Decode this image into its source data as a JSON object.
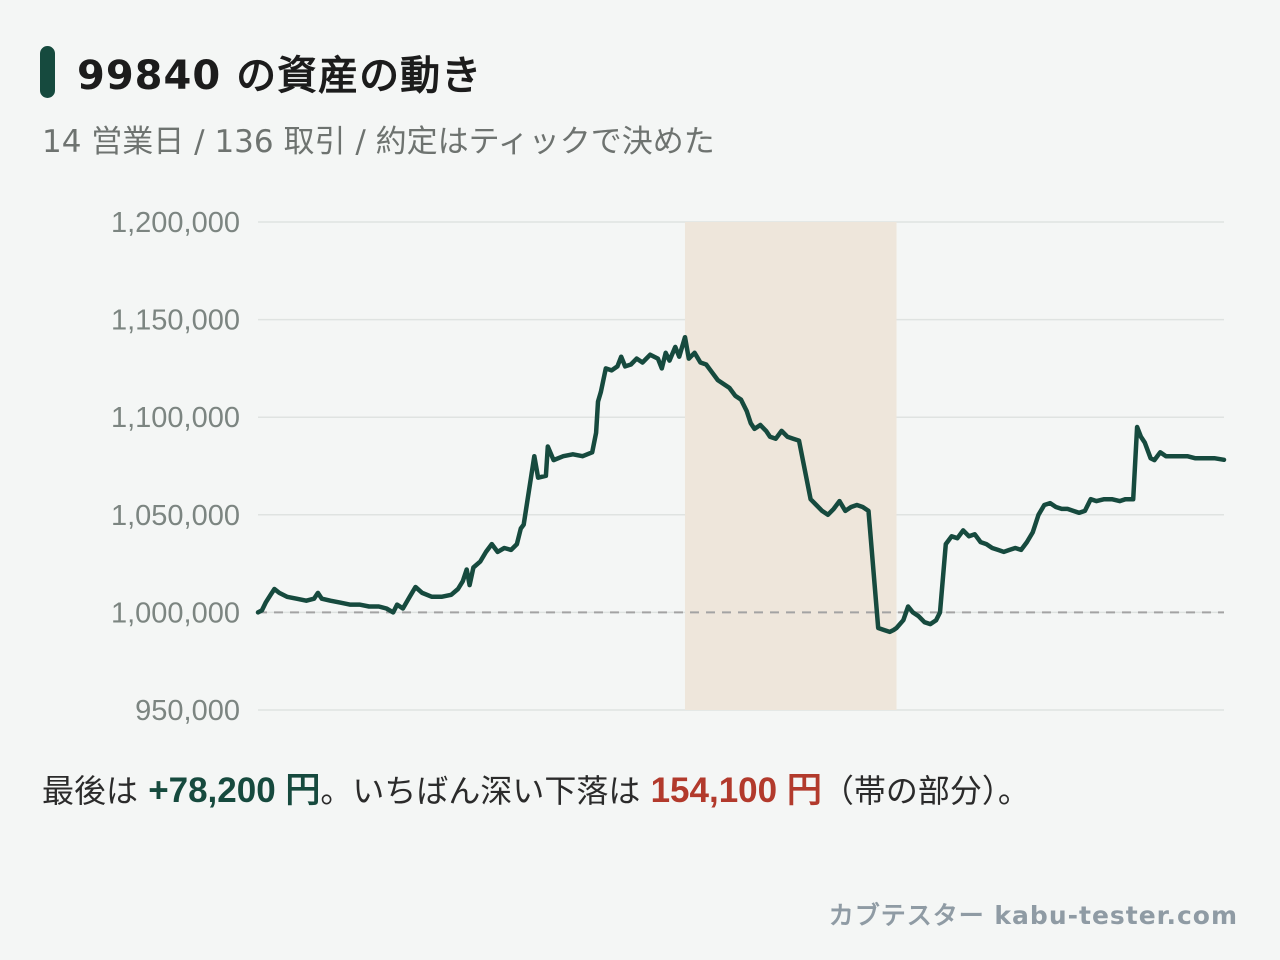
{
  "header": {
    "title": "99840 の資産の動き",
    "subtitle": "14 営業日 / 136 取引 / 約定はティックで決めた"
  },
  "summary": {
    "prefix": "最後は ",
    "final_change": "+78,200 円",
    "middle": "。いちばん深い下落は ",
    "max_drawdown": "154,100 円",
    "suffix": "（帯の部分）。"
  },
  "footer": {
    "brand": "カブテスター kabu-tester.com"
  },
  "colors": {
    "line": "#164a3e",
    "drawdown_band": "#eee6db",
    "baseline": "#a3a3a3",
    "grid": "#dfe3e1",
    "gain": "#164a3e",
    "loss": "#b23a2c"
  },
  "chart_data": {
    "type": "line",
    "title": "99840 の資産の動き",
    "xlabel": "",
    "ylabel": "",
    "ylim": [
      950000,
      1200000
    ],
    "yticks": [
      950000,
      1000000,
      1050000,
      1100000,
      1150000,
      1200000
    ],
    "ytick_labels": [
      "950,000",
      "1,000,000",
      "1,050,000",
      "1,100,000",
      "1,150,000",
      "1,200,000"
    ],
    "grid": true,
    "legend": "none",
    "baseline": 1000000,
    "drawdown_band": {
      "x_start": 0.442,
      "x_end": 0.661
    },
    "x_range": [
      0,
      1
    ],
    "series": [
      {
        "values": [
          [
            0.0,
            1000000
          ],
          [
            0.004,
            1001000
          ],
          [
            0.008,
            1005000
          ],
          [
            0.013,
            1009000
          ],
          [
            0.017,
            1012000
          ],
          [
            0.022,
            1010000
          ],
          [
            0.03,
            1008000
          ],
          [
            0.04,
            1007000
          ],
          [
            0.05,
            1006000
          ],
          [
            0.058,
            1007000
          ],
          [
            0.062,
            1010000
          ],
          [
            0.066,
            1007000
          ],
          [
            0.075,
            1006000
          ],
          [
            0.085,
            1005000
          ],
          [
            0.095,
            1004000
          ],
          [
            0.105,
            1004000
          ],
          [
            0.115,
            1003000
          ],
          [
            0.125,
            1003000
          ],
          [
            0.133,
            1002000
          ],
          [
            0.14,
            1000000
          ],
          [
            0.144,
            1004000
          ],
          [
            0.15,
            1002000
          ],
          [
            0.157,
            1008000
          ],
          [
            0.163,
            1013000
          ],
          [
            0.17,
            1010000
          ],
          [
            0.18,
            1008000
          ],
          [
            0.19,
            1008000
          ],
          [
            0.2,
            1009000
          ],
          [
            0.207,
            1012000
          ],
          [
            0.212,
            1016000
          ],
          [
            0.216,
            1022000
          ],
          [
            0.219,
            1014000
          ],
          [
            0.223,
            1023000
          ],
          [
            0.23,
            1026000
          ],
          [
            0.236,
            1031000
          ],
          [
            0.242,
            1035000
          ],
          [
            0.248,
            1031000
          ],
          [
            0.255,
            1033000
          ],
          [
            0.262,
            1032000
          ],
          [
            0.268,
            1035000
          ],
          [
            0.272,
            1043000
          ],
          [
            0.275,
            1045000
          ],
          [
            0.286,
            1080000
          ],
          [
            0.29,
            1069000
          ],
          [
            0.298,
            1070000
          ],
          [
            0.3,
            1085000
          ],
          [
            0.306,
            1078000
          ],
          [
            0.316,
            1080000
          ],
          [
            0.326,
            1081000
          ],
          [
            0.336,
            1080000
          ],
          [
            0.346,
            1082000
          ],
          [
            0.35,
            1092000
          ],
          [
            0.352,
            1108000
          ],
          [
            0.355,
            1113000
          ],
          [
            0.36,
            1125000
          ],
          [
            0.366,
            1124000
          ],
          [
            0.372,
            1126000
          ],
          [
            0.376,
            1131000
          ],
          [
            0.38,
            1126000
          ],
          [
            0.386,
            1127000
          ],
          [
            0.392,
            1130000
          ],
          [
            0.398,
            1128000
          ],
          [
            0.406,
            1132000
          ],
          [
            0.414,
            1130000
          ],
          [
            0.418,
            1125000
          ],
          [
            0.422,
            1133000
          ],
          [
            0.426,
            1129000
          ],
          [
            0.432,
            1136000
          ],
          [
            0.436,
            1131000
          ],
          [
            0.442,
            1141000
          ],
          [
            0.446,
            1130000
          ],
          [
            0.452,
            1133000
          ],
          [
            0.458,
            1128000
          ],
          [
            0.464,
            1127000
          ],
          [
            0.47,
            1123000
          ],
          [
            0.476,
            1119000
          ],
          [
            0.482,
            1117000
          ],
          [
            0.488,
            1115000
          ],
          [
            0.494,
            1111000
          ],
          [
            0.5,
            1109000
          ],
          [
            0.506,
            1103000
          ],
          [
            0.51,
            1097000
          ],
          [
            0.514,
            1094000
          ],
          [
            0.52,
            1096000
          ],
          [
            0.526,
            1093000
          ],
          [
            0.53,
            1090000
          ],
          [
            0.536,
            1089000
          ],
          [
            0.542,
            1093000
          ],
          [
            0.548,
            1090000
          ],
          [
            0.554,
            1089000
          ],
          [
            0.56,
            1088000
          ],
          [
            0.572,
            1058000
          ],
          [
            0.578,
            1055000
          ],
          [
            0.584,
            1052000
          ],
          [
            0.59,
            1050000
          ],
          [
            0.596,
            1053000
          ],
          [
            0.602,
            1057000
          ],
          [
            0.608,
            1052000
          ],
          [
            0.614,
            1054000
          ],
          [
            0.62,
            1055000
          ],
          [
            0.626,
            1054000
          ],
          [
            0.632,
            1052000
          ],
          [
            0.642,
            992000
          ],
          [
            0.648,
            991000
          ],
          [
            0.654,
            990000
          ],
          [
            0.658,
            991000
          ],
          [
            0.661,
            992000
          ],
          [
            0.668,
            996000
          ],
          [
            0.673,
            1003000
          ],
          [
            0.678,
            1000000
          ],
          [
            0.684,
            998000
          ],
          [
            0.69,
            995000
          ],
          [
            0.696,
            994000
          ],
          [
            0.702,
            996000
          ],
          [
            0.706,
            1000000
          ],
          [
            0.712,
            1035000
          ],
          [
            0.718,
            1039000
          ],
          [
            0.724,
            1038000
          ],
          [
            0.73,
            1042000
          ],
          [
            0.736,
            1039000
          ],
          [
            0.742,
            1040000
          ],
          [
            0.748,
            1036000
          ],
          [
            0.754,
            1035000
          ],
          [
            0.76,
            1033000
          ],
          [
            0.766,
            1032000
          ],
          [
            0.772,
            1031000
          ],
          [
            0.778,
            1032000
          ],
          [
            0.784,
            1033000
          ],
          [
            0.79,
            1032000
          ],
          [
            0.796,
            1036000
          ],
          [
            0.802,
            1041000
          ],
          [
            0.808,
            1050000
          ],
          [
            0.814,
            1055000
          ],
          [
            0.82,
            1056000
          ],
          [
            0.826,
            1054000
          ],
          [
            0.832,
            1053000
          ],
          [
            0.838,
            1053000
          ],
          [
            0.844,
            1052000
          ],
          [
            0.85,
            1051000
          ],
          [
            0.856,
            1052000
          ],
          [
            0.862,
            1058000
          ],
          [
            0.868,
            1057000
          ],
          [
            0.876,
            1058000
          ],
          [
            0.884,
            1058000
          ],
          [
            0.892,
            1057000
          ],
          [
            0.898,
            1058000
          ],
          [
            0.906,
            1058000
          ],
          [
            0.91,
            1095000
          ],
          [
            0.914,
            1090000
          ],
          [
            0.918,
            1087000
          ],
          [
            0.924,
            1079000
          ],
          [
            0.928,
            1078000
          ],
          [
            0.934,
            1082000
          ],
          [
            0.94,
            1080000
          ],
          [
            0.948,
            1080000
          ],
          [
            0.956,
            1080000
          ],
          [
            0.962,
            1080000
          ],
          [
            0.97,
            1079000
          ],
          [
            0.98,
            1079000
          ],
          [
            0.99,
            1079000
          ],
          [
            1.0,
            1078200
          ]
        ]
      }
    ]
  }
}
